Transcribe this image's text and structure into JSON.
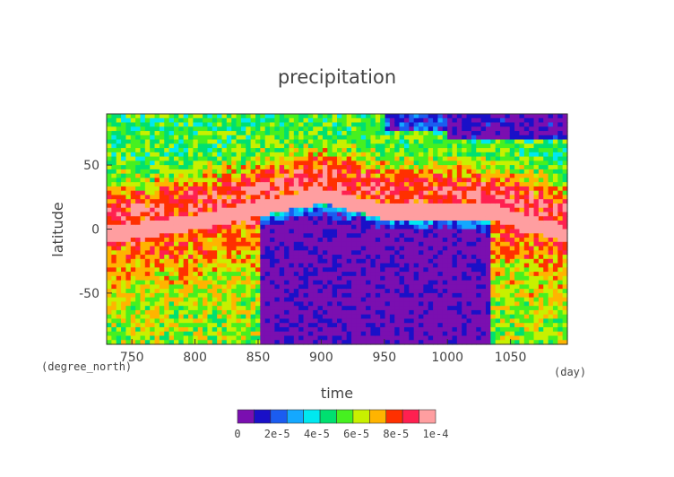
{
  "chart_data": {
    "type": "heatmap",
    "title": "precipitation",
    "xlabel": "time",
    "ylabel": "latitude",
    "x_unit": "(day)",
    "y_unit": "(degree_north)",
    "xlim": [
      730,
      1095
    ],
    "ylim": [
      -90,
      90
    ],
    "x_ticks": [
      "750",
      "800",
      "850",
      "900",
      "950",
      "1000",
      "1050"
    ],
    "y_ticks": [
      "50",
      "0",
      "-50"
    ],
    "colorbar": {
      "tick_labels": [
        "0",
        "2e-5",
        "4e-5",
        "6e-5",
        "8e-5",
        "1e-4"
      ],
      "range": [
        0,
        0.0001
      ],
      "colors": [
        "#7a0fb0",
        "#1a10c8",
        "#1b5cf0",
        "#14a8ff",
        "#00e8f0",
        "#00e070",
        "#46f020",
        "#c8f000",
        "#ffb400",
        "#ff3000",
        "#ff2050"
      ],
      "over_color": "#ff9ea0"
    },
    "pattern": {
      "description_points": [
        {
          "x": 740,
          "band_lat": -3
        },
        {
          "x": 800,
          "band_lat": 5
        },
        {
          "x": 850,
          "band_lat": 16
        },
        {
          "x": 900,
          "band_lat": 26
        },
        {
          "x": 950,
          "band_lat": 14
        },
        {
          "x": 1000,
          "band_lat": 14
        },
        {
          "x": 1040,
          "band_lat": 12
        },
        {
          "x": 1095,
          "band_lat": -5
        }
      ]
    }
  }
}
